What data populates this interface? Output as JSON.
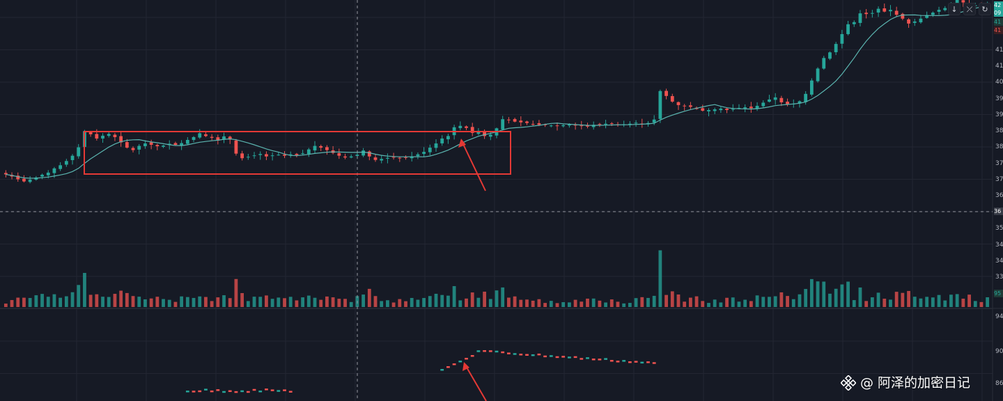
{
  "toolbar": {
    "buttons": [
      {
        "name": "arrow-down-icon",
        "glyph": "↓"
      },
      {
        "name": "collapse-icon",
        "glyph": "⤫"
      },
      {
        "name": "refresh-icon",
        "glyph": "↻"
      }
    ]
  },
  "price_axis": {
    "labels": [
      "41",
      "41",
      "40",
      "39",
      "39",
      "38",
      "38",
      "37",
      "37",
      "36",
      "36",
      "35",
      "34",
      "34",
      "33"
    ],
    "current_price_tags": [
      "42",
      "09",
      "41",
      "41"
    ],
    "crosshair_tag": "36"
  },
  "volume_axis": {
    "tag": "95"
  },
  "indicator_axis": {
    "labels": [
      "94",
      "90",
      "86"
    ]
  },
  "watermark": {
    "text": "@ 阿泽的加密日记"
  },
  "colors": {
    "background": "#161a25",
    "up": "#26a69a",
    "down": "#ef5350",
    "ma_line": "#5bb5b0",
    "annotation": "#e53935",
    "grid": "#232632"
  },
  "chart_data": {
    "type": "candlestick",
    "panels": [
      "price",
      "volume",
      "indicator"
    ],
    "series": [
      {
        "name": "",
        "kind": "ohlc_closes",
        "values": [
          372.5,
          371.9,
          371.1,
          370.5,
          371.0,
          371.6,
          372.4,
          373.0,
          374.2,
          375.1,
          376.3,
          377.8,
          380.2,
          384.8,
          383.9,
          382.7,
          383.5,
          384.0,
          383.1,
          381.6,
          380.1,
          379.4,
          380.6,
          381.3,
          380.9,
          380.5,
          380.7,
          381.2,
          380.9,
          381.4,
          382.3,
          383.1,
          384.2,
          383.4,
          382.9,
          382.1,
          383.3,
          382.4,
          378.4,
          377.1,
          377.5,
          377.9,
          378.3,
          377.6,
          377.9,
          378.1,
          377.8,
          378.2,
          378.0,
          378.5,
          379.6,
          380.6,
          380.1,
          379.4,
          378.6,
          377.8,
          377.3,
          377.6,
          378.1,
          379.3,
          377.6,
          376.6,
          376.9,
          377.2,
          377.4,
          377.1,
          377.3,
          377.6,
          378.2,
          378.9,
          380.1,
          381.3,
          382.7,
          383.4,
          385.9,
          386.3,
          385.7,
          384.3,
          384.9,
          383.4,
          383.8,
          385.6,
          388.2,
          388.0,
          387.5,
          387.3,
          387.1,
          386.8,
          386.6,
          386.5,
          386.4,
          386.3,
          386.5,
          386.7,
          386.4,
          386.3,
          386.1,
          386.6,
          386.8,
          386.9,
          387.0,
          386.6,
          386.7,
          386.9,
          387.2,
          386.9,
          387.1,
          388.1,
          396.2,
          394.8,
          393.2,
          392.2,
          392.0,
          391.7,
          391.1,
          390.6,
          390.8,
          391.0,
          391.2,
          390.8,
          391.1,
          391.4,
          391.6,
          391.3,
          392.0,
          392.9,
          393.8,
          394.4,
          393.0,
          392.4,
          392.6,
          393.3,
          395.4,
          399.2,
          402.6,
          405.6,
          407.2,
          409.6,
          412.4,
          415.2,
          415.8,
          418.3,
          418.1,
          418.4,
          419.6,
          418.8,
          419.3,
          417.9,
          416.8,
          415.4,
          416.0,
          416.8,
          417.8,
          418.5,
          419.3,
          419.8,
          420.8,
          422.1,
          421.4,
          420.6,
          420.6,
          420.4,
          420.8
        ],
        "note": "approximate closes read from the price axis; candles are colored up (green) / down (red)"
      },
      {
        "name": "",
        "kind": "moving_average",
        "values": []
      }
    ],
    "annotations": [
      {
        "type": "rectangle",
        "label": "",
        "color": "#e53935"
      },
      {
        "type": "arrow",
        "label": "",
        "color": "#e53935"
      }
    ],
    "crosshair": {
      "price": "36"
    },
    "grid": true,
    "ylabel": "",
    "xlabel": ""
  }
}
